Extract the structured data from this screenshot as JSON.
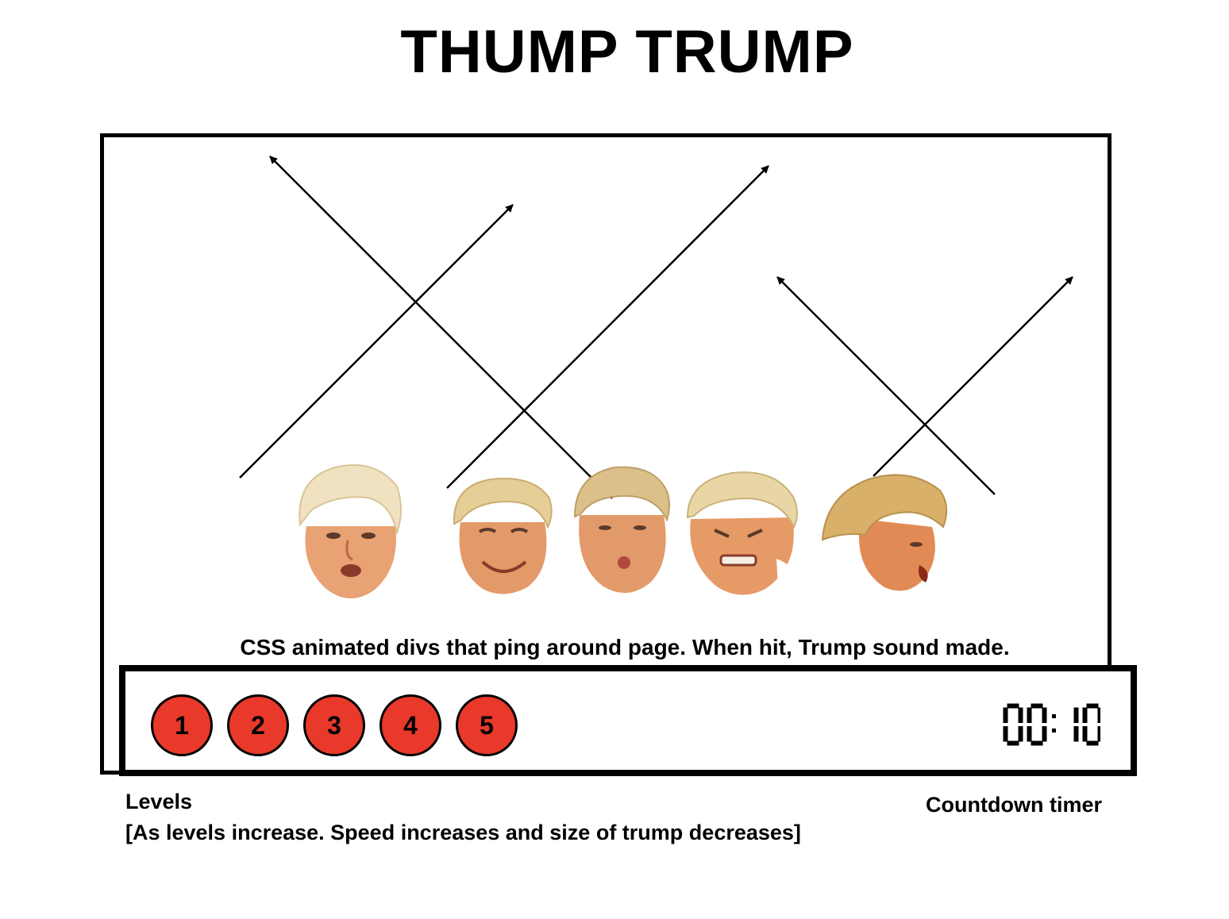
{
  "title": "THUMP TRUMP",
  "caption": "CSS animated divs that ping around page. When hit, Trump sound made.",
  "levels": {
    "items": [
      "1",
      "2",
      "3",
      "4",
      "5"
    ],
    "label": "Levels",
    "note": "[As levels increase. Speed increases and size of trump decreases]",
    "button_color": "#e8392a"
  },
  "timer": {
    "value": "00:10",
    "label": "Countdown timer"
  }
}
